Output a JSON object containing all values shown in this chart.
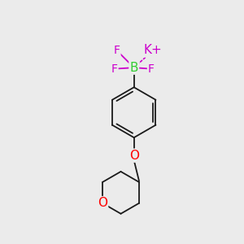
{
  "background_color": "#ebebeb",
  "bond_color": "#1a1a1a",
  "bond_width": 1.3,
  "atom_colors": {
    "B": "#33cc33",
    "F": "#cc00cc",
    "K": "#cc00cc",
    "O": "#ff0000",
    "C": "#1a1a1a"
  },
  "atom_fontsizes": {
    "B": 11,
    "F": 10,
    "K": 11,
    "O": 11,
    "C": 10
  },
  "figsize": [
    3.0,
    3.0
  ],
  "dpi": 100
}
